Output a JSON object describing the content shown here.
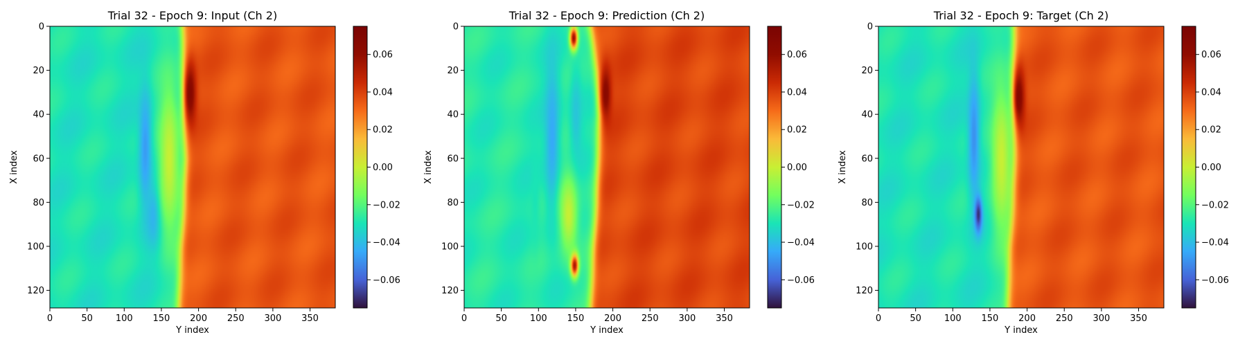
{
  "chart_data": [
    {
      "type": "heatmap",
      "title": "Trial 32 - Epoch 9: Input (Ch 2)",
      "xlabel": "Y index",
      "ylabel": "X index",
      "xlim": [
        0,
        384
      ],
      "ylim": [
        128,
        0
      ],
      "x_ticks": [
        "0",
        "50",
        "100",
        "150",
        "200",
        "250",
        "300",
        "350"
      ],
      "y_ticks": [
        "0",
        "20",
        "40",
        "60",
        "80",
        "100",
        "120"
      ],
      "colorbar": {
        "range": [
          -0.075,
          0.075
        ],
        "ticks": [
          "0.06",
          "0.04",
          "0.02",
          "0.00",
          "−0.02",
          "−0.04",
          "−0.06"
        ]
      },
      "colormap": "turbo",
      "field": {
        "left_level": -0.03,
        "right_level": 0.035,
        "front_x": [
          0,
          20,
          40,
          60,
          80,
          100,
          128
        ],
        "front_y": [
          178,
          180,
          180,
          182,
          180,
          176,
          173
        ],
        "features": [
          {
            "x": 55,
            "y": 128,
            "value": -0.048,
            "rx": 9,
            "ry": 28
          },
          {
            "x": 85,
            "y": 140,
            "value": -0.045,
            "rx": 9,
            "ry": 14
          },
          {
            "x": 30,
            "y": 188,
            "value": 0.068,
            "rx": 8,
            "ry": 14
          },
          {
            "x": 60,
            "y": 160,
            "value": 0.0,
            "rx": 14,
            "ry": 35
          }
        ]
      }
    },
    {
      "type": "heatmap",
      "title": "Trial 32 - Epoch 9: Prediction (Ch 2)",
      "xlabel": "Y index",
      "ylabel": "X index",
      "xlim": [
        0,
        384
      ],
      "ylim": [
        128,
        0
      ],
      "x_ticks": [
        "0",
        "50",
        "100",
        "150",
        "200",
        "250",
        "300",
        "350"
      ],
      "y_ticks": [
        "0",
        "20",
        "40",
        "60",
        "80",
        "100",
        "120"
      ],
      "colorbar": {
        "range": [
          -0.075,
          0.075
        ],
        "ticks": [
          "0.06",
          "0.04",
          "0.02",
          "0.00",
          "−0.02",
          "−0.04",
          "−0.06"
        ]
      },
      "colormap": "turbo",
      "field": {
        "left_level": -0.028,
        "right_level": 0.038,
        "front_x": [
          0,
          20,
          40,
          60,
          80,
          100,
          128
        ],
        "front_y": [
          170,
          178,
          182,
          180,
          178,
          174,
          170
        ],
        "features": [
          {
            "x": 50,
            "y": 118,
            "value": -0.045,
            "rx": 10,
            "ry": 35
          },
          {
            "x": 75,
            "y": 95,
            "value": -0.03,
            "rx": 6,
            "ry": 25
          },
          {
            "x": 30,
            "y": 190,
            "value": 0.065,
            "rx": 7,
            "ry": 12
          },
          {
            "x": 5,
            "y": 147,
            "value": 0.065,
            "rx": 5,
            "ry": 5
          },
          {
            "x": 108,
            "y": 148,
            "value": 0.062,
            "rx": 5,
            "ry": 5
          },
          {
            "x": 40,
            "y": 150,
            "value": -0.038,
            "rx": 8,
            "ry": 22
          },
          {
            "x": 85,
            "y": 140,
            "value": 0.0,
            "rx": 12,
            "ry": 18
          }
        ]
      }
    },
    {
      "type": "heatmap",
      "title": "Trial 32 - Epoch 9: Target (Ch 2)",
      "xlabel": "Y index",
      "ylabel": "X index",
      "xlim": [
        0,
        384
      ],
      "ylim": [
        128,
        0
      ],
      "x_ticks": [
        "0",
        "50",
        "100",
        "150",
        "200",
        "250",
        "300",
        "350"
      ],
      "y_ticks": [
        "0",
        "20",
        "40",
        "60",
        "80",
        "100",
        "120"
      ],
      "colorbar": {
        "range": [
          -0.075,
          0.075
        ],
        "ticks": [
          "0.06",
          "0.04",
          "0.02",
          "0.00",
          "−0.02",
          "−0.04",
          "−0.06"
        ]
      },
      "colormap": "turbo",
      "field": {
        "left_level": -0.03,
        "right_level": 0.035,
        "front_x": [
          0,
          20,
          40,
          60,
          80,
          100,
          128
        ],
        "front_y": [
          182,
          182,
          184,
          182,
          180,
          176,
          174
        ],
        "features": [
          {
            "x": 50,
            "y": 128,
            "value": -0.05,
            "rx": 8,
            "ry": 30
          },
          {
            "x": 85,
            "y": 134,
            "value": -0.07,
            "rx": 5,
            "ry": 8
          },
          {
            "x": 32,
            "y": 188,
            "value": 0.07,
            "rx": 8,
            "ry": 14
          },
          {
            "x": 60,
            "y": 165,
            "value": 0.0,
            "rx": 14,
            "ry": 35
          }
        ]
      }
    }
  ]
}
